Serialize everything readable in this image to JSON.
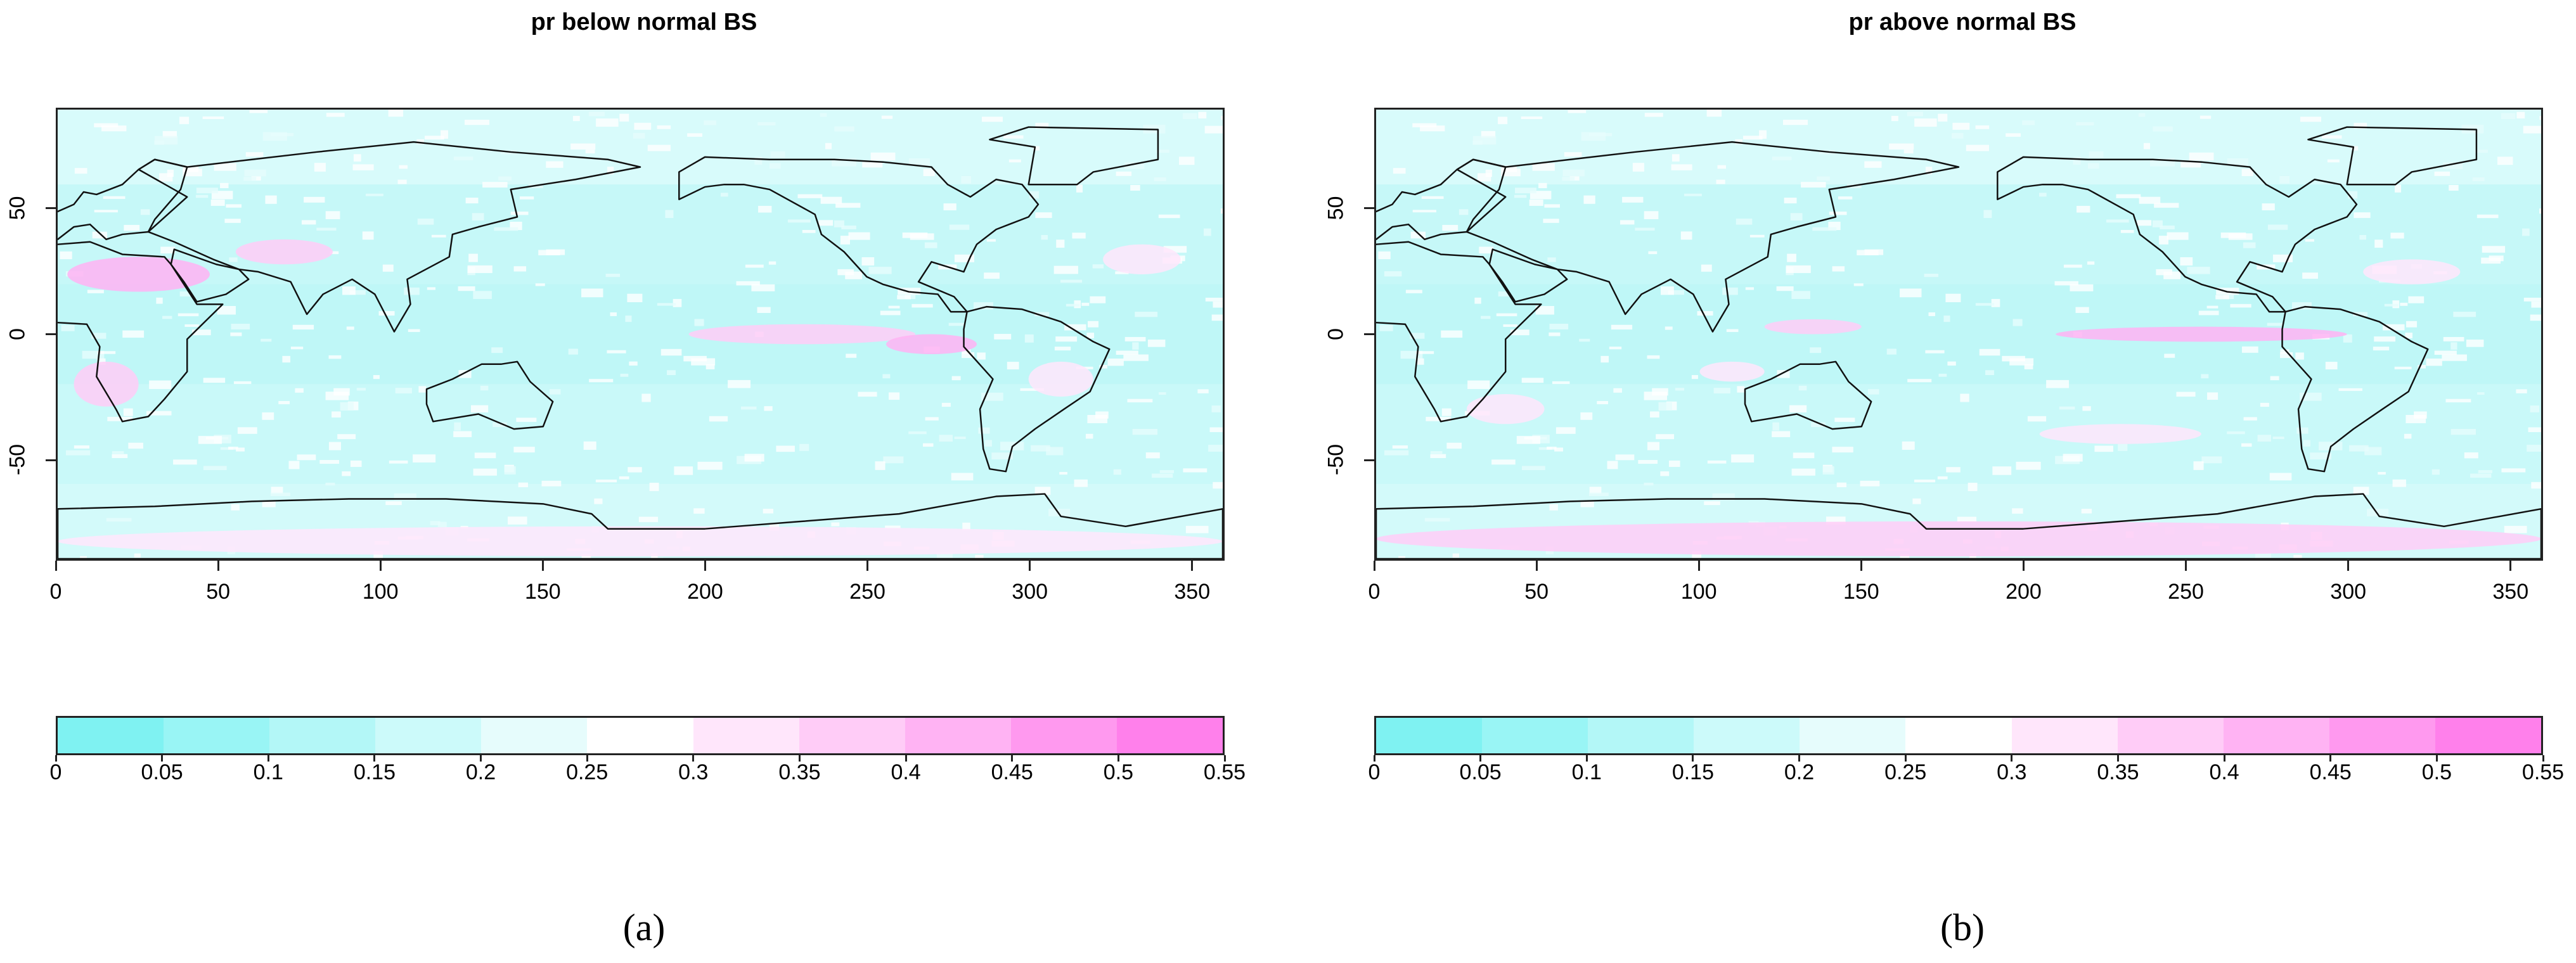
{
  "panels": [
    {
      "title": "pr below normal BS",
      "caption": "(a)",
      "chart_data": {
        "type": "heatmap",
        "title": "pr below normal BS",
        "xlim": [
          0,
          360
        ],
        "ylim": [
          -90,
          90
        ],
        "x_ticks": [
          "0",
          "50",
          "100",
          "150",
          "200",
          "250",
          "300",
          "350"
        ],
        "y_ticks": [
          "-50",
          "0",
          "50"
        ],
        "colorbar_ticks": [
          "0",
          "0.05",
          "0.1",
          "0.15",
          "0.2",
          "0.25",
          "0.3",
          "0.35",
          "0.4",
          "0.45",
          "0.5",
          "0.55"
        ],
        "colorbar_colors": [
          "#7ff2f2",
          "#99f5f5",
          "#b3f7f7",
          "#ccfafa",
          "#e6fcfc",
          "#ffffff",
          "#ffe6fb",
          "#ffccf7",
          "#ffb3f3",
          "#ff99ef",
          "#ff80eb"
        ],
        "dominant_range": "0.15-0.25",
        "pink_regions": [
          "Arabian Peninsula / Sahara",
          "Southern Africa",
          "Eastern equatorial Pacific",
          "Antarctica"
        ]
      }
    },
    {
      "title": "pr above normal BS",
      "caption": "(b)",
      "chart_data": {
        "type": "heatmap",
        "title": "pr above normal BS",
        "xlim": [
          0,
          360
        ],
        "ylim": [
          -90,
          90
        ],
        "x_ticks": [
          "0",
          "50",
          "100",
          "150",
          "200",
          "250",
          "300",
          "350"
        ],
        "y_ticks": [
          "-50",
          "0",
          "50"
        ],
        "colorbar_ticks": [
          "0",
          "0.05",
          "0.1",
          "0.15",
          "0.2",
          "0.25",
          "0.3",
          "0.35",
          "0.4",
          "0.45",
          "0.5",
          "0.55"
        ],
        "colorbar_colors": [
          "#7ff2f2",
          "#99f5f5",
          "#b3f7f7",
          "#ccfafa",
          "#e6fcfc",
          "#ffffff",
          "#ffe6fb",
          "#ffccf7",
          "#ffb3f3",
          "#ff99ef",
          "#ff80eb"
        ],
        "dominant_range": "0.15-0.3",
        "pink_regions": [
          "Eastern equatorial Pacific",
          "Western Pacific warm pool",
          "Antarctica"
        ]
      }
    }
  ]
}
